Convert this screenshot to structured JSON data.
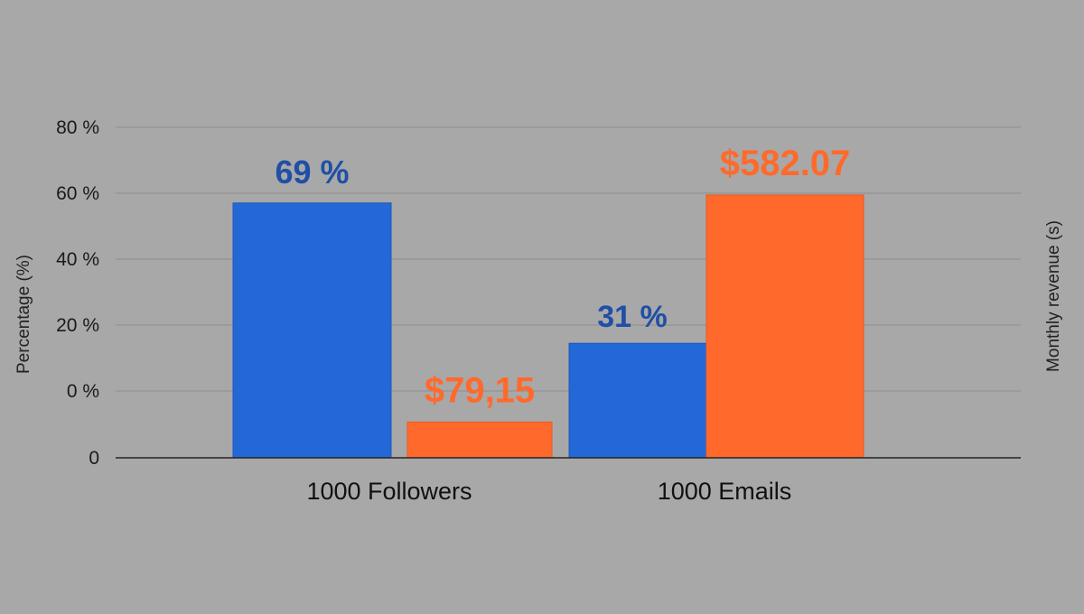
{
  "chart_data": {
    "type": "bar",
    "categories": [
      "1000 Followers",
      "1000 Emails"
    ],
    "series": [
      {
        "values": [
          69,
          31
        ],
        "labels": [
          "69 %",
          "31 %"
        ],
        "color": "#2468d8",
        "label_color": "#1f4fa6"
      },
      {
        "values": [
          79.15,
          582.07
        ],
        "labels": [
          "$79,15",
          "$582.07"
        ],
        "color": "#ff6a2c",
        "label_color": "#ff6a2c"
      }
    ],
    "y_tick_labels": [
      "0",
      "0 %",
      "20 %",
      "40 %",
      "60 %",
      "80 %"
    ],
    "ylabel": "Percentage (%)",
    "ylabel_right": "Monthly revenue (s)",
    "grid": true
  }
}
